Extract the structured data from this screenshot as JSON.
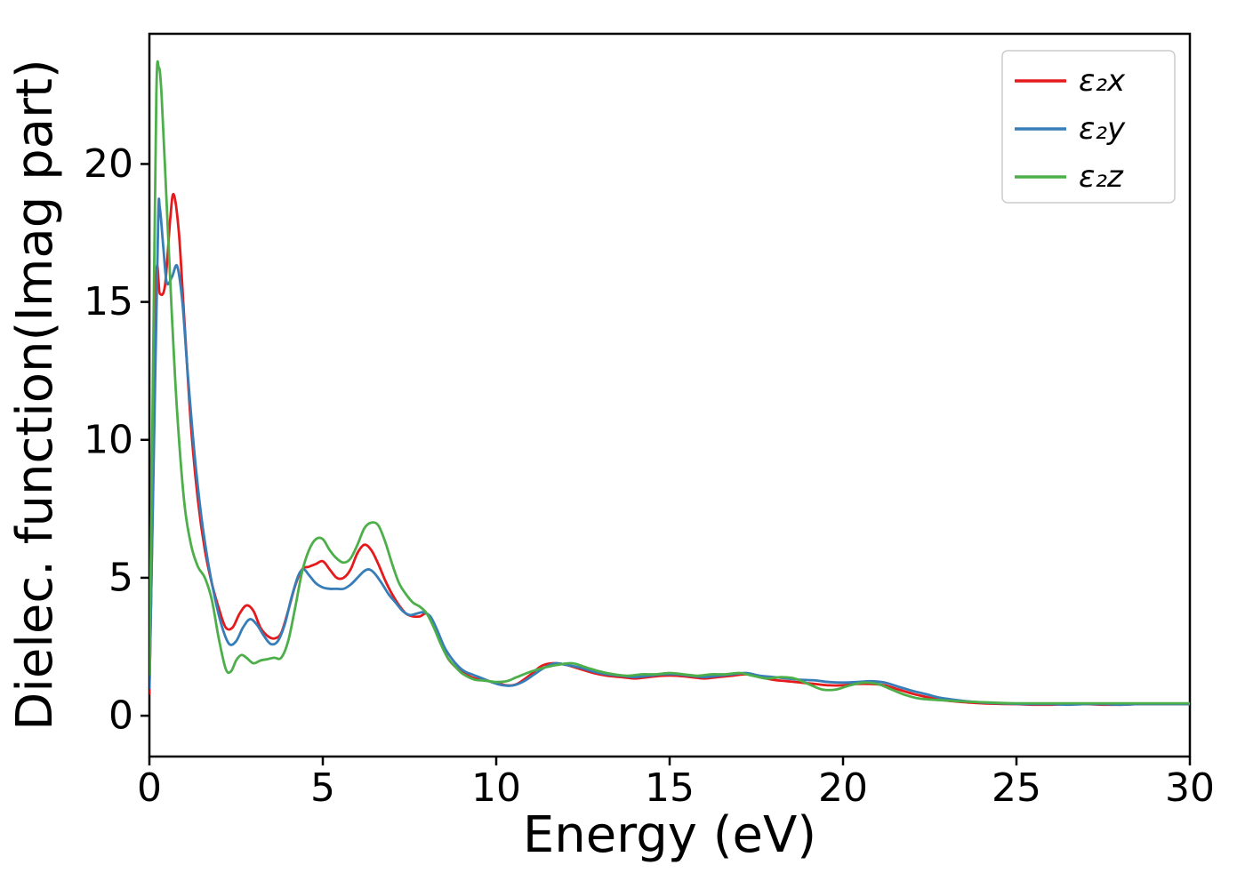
{
  "figure": {
    "background": "#ffffff"
  },
  "chart_data": {
    "type": "line",
    "title": "",
    "xlabel": "Energy (eV)",
    "ylabel": "Dielec. function(Imag part)",
    "xlim": [
      0,
      30
    ],
    "ylim": [
      -1.48,
      24.72
    ],
    "xticks": [
      0,
      5,
      10,
      15,
      20,
      25,
      30
    ],
    "yticks": [
      0,
      5,
      10,
      15,
      20
    ],
    "grid": false,
    "legend_position": "upper right",
    "axis_color": "#000000",
    "series": [
      {
        "name": "ε₂x",
        "color": "#e41a1c",
        "points": [
          [
            0,
            0.8
          ],
          [
            0.1,
            8
          ],
          [
            0.2,
            15.9
          ],
          [
            0.3,
            15.3
          ],
          [
            0.45,
            15.6
          ],
          [
            0.6,
            18.0
          ],
          [
            0.7,
            18.9
          ],
          [
            0.85,
            17.5
          ],
          [
            1.0,
            14.5
          ],
          [
            1.2,
            10.5
          ],
          [
            1.4,
            7.8
          ],
          [
            1.6,
            6.0
          ],
          [
            1.8,
            4.8
          ],
          [
            2.0,
            3.9
          ],
          [
            2.2,
            3.2
          ],
          [
            2.4,
            3.2
          ],
          [
            2.6,
            3.7
          ],
          [
            2.8,
            4.0
          ],
          [
            3.0,
            3.8
          ],
          [
            3.2,
            3.2
          ],
          [
            3.4,
            2.9
          ],
          [
            3.6,
            2.8
          ],
          [
            3.8,
            3.0
          ],
          [
            4.0,
            3.8
          ],
          [
            4.2,
            4.7
          ],
          [
            4.4,
            5.3
          ],
          [
            4.6,
            5.4
          ],
          [
            4.8,
            5.5
          ],
          [
            5.0,
            5.6
          ],
          [
            5.2,
            5.3
          ],
          [
            5.4,
            5.0
          ],
          [
            5.6,
            5.0
          ],
          [
            5.8,
            5.3
          ],
          [
            6.0,
            5.9
          ],
          [
            6.2,
            6.2
          ],
          [
            6.4,
            6.0
          ],
          [
            6.6,
            5.5
          ],
          [
            6.8,
            4.9
          ],
          [
            7.0,
            4.4
          ],
          [
            7.2,
            4.0
          ],
          [
            7.4,
            3.7
          ],
          [
            7.6,
            3.6
          ],
          [
            7.8,
            3.6
          ],
          [
            8.0,
            3.7
          ],
          [
            8.2,
            3.3
          ],
          [
            8.4,
            2.7
          ],
          [
            8.6,
            2.1
          ],
          [
            8.8,
            1.8
          ],
          [
            9.0,
            1.6
          ],
          [
            9.2,
            1.45
          ],
          [
            9.4,
            1.35
          ],
          [
            9.6,
            1.3
          ],
          [
            9.8,
            1.25
          ],
          [
            10.0,
            1.2
          ],
          [
            10.3,
            1.1
          ],
          [
            10.6,
            1.15
          ],
          [
            11.0,
            1.5
          ],
          [
            11.3,
            1.8
          ],
          [
            11.6,
            1.9
          ],
          [
            12.0,
            1.85
          ],
          [
            12.4,
            1.7
          ],
          [
            12.8,
            1.55
          ],
          [
            13.2,
            1.45
          ],
          [
            13.6,
            1.4
          ],
          [
            14.0,
            1.35
          ],
          [
            14.4,
            1.4
          ],
          [
            14.8,
            1.45
          ],
          [
            15.2,
            1.45
          ],
          [
            15.6,
            1.4
          ],
          [
            16.0,
            1.35
          ],
          [
            16.4,
            1.4
          ],
          [
            16.8,
            1.45
          ],
          [
            17.2,
            1.5
          ],
          [
            17.6,
            1.4
          ],
          [
            18.0,
            1.3
          ],
          [
            18.4,
            1.25
          ],
          [
            18.8,
            1.2
          ],
          [
            19.2,
            1.15
          ],
          [
            19.6,
            1.1
          ],
          [
            20.0,
            1.1
          ],
          [
            20.4,
            1.15
          ],
          [
            20.8,
            1.15
          ],
          [
            21.2,
            1.1
          ],
          [
            21.6,
            0.95
          ],
          [
            22.0,
            0.8
          ],
          [
            22.4,
            0.68
          ],
          [
            22.8,
            0.58
          ],
          [
            23.2,
            0.52
          ],
          [
            23.6,
            0.48
          ],
          [
            24.0,
            0.45
          ],
          [
            24.5,
            0.43
          ],
          [
            25.0,
            0.42
          ],
          [
            25.5,
            0.4
          ],
          [
            26.0,
            0.4
          ],
          [
            26.5,
            0.42
          ],
          [
            27.0,
            0.42
          ],
          [
            27.5,
            0.4
          ],
          [
            28.0,
            0.4
          ],
          [
            28.5,
            0.42
          ],
          [
            29.0,
            0.42
          ],
          [
            29.5,
            0.42
          ],
          [
            30.0,
            0.42
          ]
        ]
      },
      {
        "name": "ε₂y",
        "color": "#377eb8",
        "points": [
          [
            0,
            1.0
          ],
          [
            0.12,
            9
          ],
          [
            0.25,
            17.8
          ],
          [
            0.3,
            18.4
          ],
          [
            0.4,
            17.0
          ],
          [
            0.5,
            15.7
          ],
          [
            0.65,
            15.9
          ],
          [
            0.8,
            16.3
          ],
          [
            0.95,
            15.0
          ],
          [
            1.1,
            12.5
          ],
          [
            1.3,
            9.5
          ],
          [
            1.5,
            7.2
          ],
          [
            1.7,
            5.5
          ],
          [
            1.9,
            4.2
          ],
          [
            2.1,
            3.2
          ],
          [
            2.3,
            2.6
          ],
          [
            2.5,
            2.7
          ],
          [
            2.7,
            3.2
          ],
          [
            2.9,
            3.5
          ],
          [
            3.1,
            3.3
          ],
          [
            3.3,
            2.9
          ],
          [
            3.5,
            2.6
          ],
          [
            3.7,
            2.7
          ],
          [
            3.9,
            3.3
          ],
          [
            4.1,
            4.3
          ],
          [
            4.3,
            5.1
          ],
          [
            4.45,
            5.3
          ],
          [
            4.6,
            5.1
          ],
          [
            4.8,
            4.8
          ],
          [
            5.0,
            4.65
          ],
          [
            5.2,
            4.6
          ],
          [
            5.4,
            4.6
          ],
          [
            5.6,
            4.6
          ],
          [
            5.8,
            4.75
          ],
          [
            6.0,
            5.0
          ],
          [
            6.2,
            5.25
          ],
          [
            6.35,
            5.3
          ],
          [
            6.5,
            5.15
          ],
          [
            6.7,
            4.8
          ],
          [
            6.9,
            4.4
          ],
          [
            7.1,
            4.1
          ],
          [
            7.3,
            3.8
          ],
          [
            7.5,
            3.65
          ],
          [
            7.7,
            3.7
          ],
          [
            7.9,
            3.75
          ],
          [
            8.1,
            3.6
          ],
          [
            8.3,
            3.1
          ],
          [
            8.5,
            2.5
          ],
          [
            8.7,
            2.1
          ],
          [
            8.9,
            1.8
          ],
          [
            9.1,
            1.6
          ],
          [
            9.3,
            1.5
          ],
          [
            9.5,
            1.4
          ],
          [
            9.7,
            1.3
          ],
          [
            9.9,
            1.2
          ],
          [
            10.2,
            1.1
          ],
          [
            10.5,
            1.1
          ],
          [
            10.8,
            1.25
          ],
          [
            11.1,
            1.5
          ],
          [
            11.4,
            1.75
          ],
          [
            11.7,
            1.9
          ],
          [
            12.0,
            1.85
          ],
          [
            12.4,
            1.75
          ],
          [
            12.8,
            1.6
          ],
          [
            13.2,
            1.5
          ],
          [
            13.6,
            1.45
          ],
          [
            14.0,
            1.4
          ],
          [
            14.4,
            1.45
          ],
          [
            14.8,
            1.5
          ],
          [
            15.2,
            1.5
          ],
          [
            15.6,
            1.45
          ],
          [
            16.0,
            1.4
          ],
          [
            16.4,
            1.45
          ],
          [
            16.8,
            1.5
          ],
          [
            17.2,
            1.55
          ],
          [
            17.6,
            1.45
          ],
          [
            18.0,
            1.4
          ],
          [
            18.4,
            1.35
          ],
          [
            18.8,
            1.3
          ],
          [
            19.2,
            1.28
          ],
          [
            19.6,
            1.22
          ],
          [
            20.0,
            1.2
          ],
          [
            20.4,
            1.22
          ],
          [
            20.8,
            1.25
          ],
          [
            21.2,
            1.2
          ],
          [
            21.6,
            1.05
          ],
          [
            22.0,
            0.9
          ],
          [
            22.4,
            0.78
          ],
          [
            22.8,
            0.65
          ],
          [
            23.2,
            0.58
          ],
          [
            23.6,
            0.52
          ],
          [
            24.0,
            0.48
          ],
          [
            24.5,
            0.45
          ],
          [
            25.0,
            0.43
          ],
          [
            25.5,
            0.42
          ],
          [
            26.0,
            0.42
          ],
          [
            26.5,
            0.4
          ],
          [
            27.0,
            0.42
          ],
          [
            27.5,
            0.42
          ],
          [
            28.0,
            0.4
          ],
          [
            28.5,
            0.42
          ],
          [
            29.0,
            0.42
          ],
          [
            29.5,
            0.42
          ],
          [
            30.0,
            0.42
          ]
        ]
      },
      {
        "name": "ε₂z",
        "color": "#4daf4a",
        "points": [
          [
            0,
            1.5
          ],
          [
            0.1,
            12
          ],
          [
            0.2,
            22.5
          ],
          [
            0.27,
            23.5
          ],
          [
            0.35,
            22.5
          ],
          [
            0.5,
            18.5
          ],
          [
            0.65,
            14.5
          ],
          [
            0.8,
            11.0
          ],
          [
            1.0,
            7.8
          ],
          [
            1.2,
            6.2
          ],
          [
            1.4,
            5.4
          ],
          [
            1.6,
            5.0
          ],
          [
            1.8,
            4.2
          ],
          [
            2.0,
            2.8
          ],
          [
            2.2,
            1.7
          ],
          [
            2.35,
            1.6
          ],
          [
            2.5,
            2.0
          ],
          [
            2.65,
            2.2
          ],
          [
            2.8,
            2.1
          ],
          [
            3.0,
            1.9
          ],
          [
            3.2,
            2.0
          ],
          [
            3.4,
            2.05
          ],
          [
            3.6,
            2.1
          ],
          [
            3.8,
            2.1
          ],
          [
            4.0,
            2.7
          ],
          [
            4.2,
            3.9
          ],
          [
            4.4,
            5.2
          ],
          [
            4.6,
            6.0
          ],
          [
            4.8,
            6.4
          ],
          [
            5.0,
            6.4
          ],
          [
            5.2,
            6.0
          ],
          [
            5.4,
            5.7
          ],
          [
            5.6,
            5.55
          ],
          [
            5.8,
            5.7
          ],
          [
            6.0,
            6.2
          ],
          [
            6.2,
            6.8
          ],
          [
            6.4,
            7.0
          ],
          [
            6.6,
            6.9
          ],
          [
            6.8,
            6.3
          ],
          [
            7.0,
            5.5
          ],
          [
            7.2,
            4.8
          ],
          [
            7.4,
            4.4
          ],
          [
            7.6,
            4.1
          ],
          [
            7.8,
            3.95
          ],
          [
            8.0,
            3.7
          ],
          [
            8.2,
            3.2
          ],
          [
            8.4,
            2.6
          ],
          [
            8.6,
            2.1
          ],
          [
            8.8,
            1.8
          ],
          [
            9.0,
            1.55
          ],
          [
            9.2,
            1.4
          ],
          [
            9.4,
            1.3
          ],
          [
            9.6,
            1.28
          ],
          [
            9.8,
            1.25
          ],
          [
            10.0,
            1.22
          ],
          [
            10.3,
            1.25
          ],
          [
            10.6,
            1.4
          ],
          [
            11.0,
            1.6
          ],
          [
            11.4,
            1.75
          ],
          [
            11.8,
            1.85
          ],
          [
            12.2,
            1.9
          ],
          [
            12.6,
            1.75
          ],
          [
            13.0,
            1.6
          ],
          [
            13.4,
            1.5
          ],
          [
            13.8,
            1.45
          ],
          [
            14.2,
            1.5
          ],
          [
            14.6,
            1.5
          ],
          [
            15.0,
            1.55
          ],
          [
            15.4,
            1.5
          ],
          [
            15.8,
            1.45
          ],
          [
            16.2,
            1.5
          ],
          [
            16.6,
            1.5
          ],
          [
            17.0,
            1.55
          ],
          [
            17.4,
            1.45
          ],
          [
            17.8,
            1.35
          ],
          [
            18.2,
            1.4
          ],
          [
            18.6,
            1.35
          ],
          [
            19.0,
            1.15
          ],
          [
            19.4,
            0.95
          ],
          [
            19.8,
            0.95
          ],
          [
            20.2,
            1.1
          ],
          [
            20.6,
            1.2
          ],
          [
            21.0,
            1.15
          ],
          [
            21.4,
            0.95
          ],
          [
            21.8,
            0.75
          ],
          [
            22.2,
            0.62
          ],
          [
            22.6,
            0.58
          ],
          [
            23.0,
            0.55
          ],
          [
            23.4,
            0.52
          ],
          [
            23.8,
            0.5
          ],
          [
            24.2,
            0.48
          ],
          [
            24.6,
            0.46
          ],
          [
            25.0,
            0.45
          ],
          [
            25.5,
            0.45
          ],
          [
            26.0,
            0.45
          ],
          [
            26.5,
            0.45
          ],
          [
            27.0,
            0.45
          ],
          [
            27.5,
            0.45
          ],
          [
            28.0,
            0.45
          ],
          [
            28.5,
            0.45
          ],
          [
            29.0,
            0.45
          ],
          [
            29.5,
            0.45
          ],
          [
            30.0,
            0.45
          ]
        ]
      }
    ]
  }
}
